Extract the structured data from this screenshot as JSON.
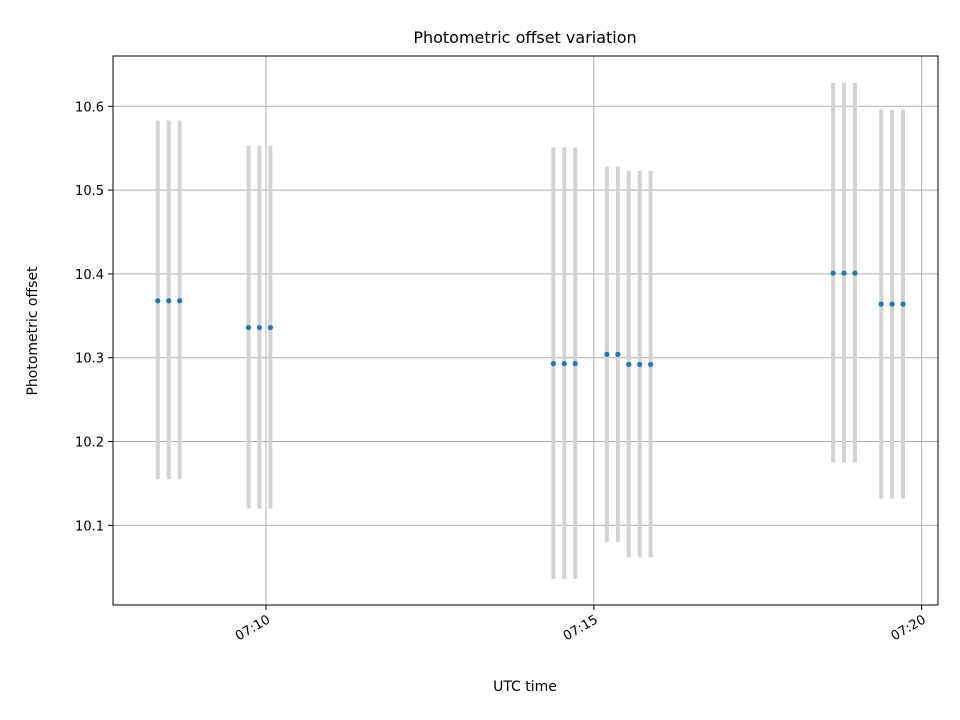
{
  "chart_data": {
    "type": "scatter",
    "title": "Photometric offset variation",
    "xlabel": "UTC time",
    "ylabel": "Photometric offset",
    "x_axis_type": "time",
    "xlim": [
      "07:07:40",
      "07:20:15"
    ],
    "ylim": [
      10.005,
      10.66
    ],
    "x_ticks": [
      "07:10",
      "07:15",
      "07:20"
    ],
    "y_ticks": [
      10.1,
      10.2,
      10.3,
      10.4,
      10.5,
      10.6
    ],
    "y_tick_labels": [
      "10.1",
      "10.2",
      "10.3",
      "10.4",
      "10.5",
      "10.6"
    ],
    "grid": true,
    "legend": "none",
    "colors": {
      "points": "#1f77b4",
      "error_bars": "#d3d3d3",
      "grid": "#b0b0b0",
      "axes": "#000000"
    },
    "series": [
      {
        "points": [
          {
            "x": "07:08:21",
            "y": 10.368,
            "err_low": 10.155,
            "err_high": 10.583
          },
          {
            "x": "07:08:31",
            "y": 10.368,
            "err_low": 10.155,
            "err_high": 10.583
          },
          {
            "x": "07:08:41",
            "y": 10.368,
            "err_low": 10.155,
            "err_high": 10.583
          },
          {
            "x": "07:09:44",
            "y": 10.336,
            "err_low": 10.12,
            "err_high": 10.553
          },
          {
            "x": "07:09:54",
            "y": 10.336,
            "err_low": 10.12,
            "err_high": 10.553
          },
          {
            "x": "07:10:04",
            "y": 10.336,
            "err_low": 10.12,
            "err_high": 10.553
          },
          {
            "x": "07:14:23",
            "y": 10.293,
            "err_low": 10.036,
            "err_high": 10.551
          },
          {
            "x": "07:14:33",
            "y": 10.293,
            "err_low": 10.036,
            "err_high": 10.551
          },
          {
            "x": "07:14:43",
            "y": 10.293,
            "err_low": 10.036,
            "err_high": 10.551
          },
          {
            "x": "07:15:12",
            "y": 10.304,
            "err_low": 10.08,
            "err_high": 10.528
          },
          {
            "x": "07:15:22",
            "y": 10.304,
            "err_low": 10.08,
            "err_high": 10.528
          },
          {
            "x": "07:15:32",
            "y": 10.292,
            "err_low": 10.062,
            "err_high": 10.523
          },
          {
            "x": "07:15:42",
            "y": 10.292,
            "err_low": 10.062,
            "err_high": 10.523
          },
          {
            "x": "07:15:52",
            "y": 10.292,
            "err_low": 10.062,
            "err_high": 10.523
          },
          {
            "x": "07:18:39",
            "y": 10.401,
            "err_low": 10.175,
            "err_high": 10.628
          },
          {
            "x": "07:18:49",
            "y": 10.401,
            "err_low": 10.175,
            "err_high": 10.628
          },
          {
            "x": "07:18:59",
            "y": 10.401,
            "err_low": 10.175,
            "err_high": 10.628
          },
          {
            "x": "07:19:23",
            "y": 10.364,
            "err_low": 10.132,
            "err_high": 10.596
          },
          {
            "x": "07:19:33",
            "y": 10.364,
            "err_low": 10.132,
            "err_high": 10.596
          },
          {
            "x": "07:19:43",
            "y": 10.364,
            "err_low": 10.132,
            "err_high": 10.596
          }
        ]
      }
    ]
  }
}
